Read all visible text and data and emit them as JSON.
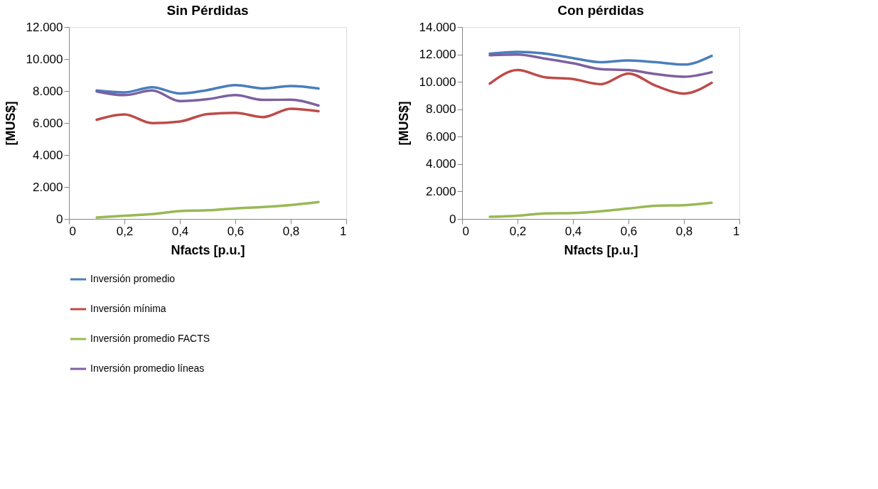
{
  "chart_data": [
    {
      "type": "line",
      "title": "Sin Pérdidas",
      "xlabel": "Nfacts [p.u.]",
      "ylabel": "[MUS$]",
      "x": [
        0.1,
        0.2,
        0.3,
        0.4,
        0.5,
        0.6,
        0.7,
        0.8,
        0.9
      ],
      "series": [
        {
          "name": "Inversión promedio",
          "color": "#4a7ebb",
          "values": [
            8030,
            7910,
            8230,
            7840,
            8060,
            8370,
            8160,
            8310,
            8160
          ]
        },
        {
          "name": "Inversión mínima",
          "color": "#be4b48",
          "values": [
            6200,
            6530,
            5990,
            6090,
            6560,
            6630,
            6370,
            6890,
            6730
          ]
        },
        {
          "name": "Inversión promedio FACTS",
          "color": "#98b954",
          "values": [
            90,
            200,
            300,
            490,
            540,
            660,
            740,
            870,
            1060
          ]
        },
        {
          "name": "Inversión promedio líneas",
          "color": "#7d60a0",
          "values": [
            7970,
            7740,
            8030,
            7370,
            7490,
            7740,
            7440,
            7460,
            7090
          ]
        }
      ],
      "xlim": [
        0,
        1
      ],
      "ylim": [
        0,
        12000
      ],
      "xticks": [
        0,
        {
          "value": 0.2,
          "label": "0,2"
        },
        {
          "value": 0.4,
          "label": "0,4"
        },
        {
          "value": 0.6,
          "label": "0,6"
        },
        {
          "value": 0.8,
          "label": "0,8"
        },
        1
      ],
      "yticks": [
        0,
        {
          "value": 2000,
          "label": "2.000"
        },
        {
          "value": 4000,
          "label": "4.000"
        },
        {
          "value": 6000,
          "label": "6.000"
        },
        {
          "value": 8000,
          "label": "8.000"
        },
        {
          "value": 10000,
          "label": "10.000"
        },
        {
          "value": 12000,
          "label": "12.000"
        }
      ],
      "legend": "bottom",
      "grid": false,
      "marker": "none",
      "line_style": "solid"
    },
    {
      "type": "line",
      "title": "Con pérdidas",
      "xlabel": "Nfacts [p.u.]",
      "ylabel": "[MUS$]",
      "x": [
        0.1,
        0.2,
        0.3,
        0.4,
        0.5,
        0.6,
        0.7,
        0.8,
        0.9
      ],
      "series": [
        {
          "name": "Inversión promedio",
          "color": "#4a7ebb",
          "values": [
            12060,
            12190,
            12060,
            11730,
            11430,
            11560,
            11430,
            11260,
            11890
          ]
        },
        {
          "name": "Inversión mínima",
          "color": "#be4b48",
          "values": [
            9870,
            10860,
            10330,
            10200,
            9830,
            10610,
            9700,
            9140,
            9930
          ]
        },
        {
          "name": "Inversión promedio FACTS",
          "color": "#98b954",
          "values": [
            150,
            230,
            400,
            430,
            560,
            760,
            960,
            1000,
            1180
          ]
        },
        {
          "name": "Inversión promedio líneas",
          "color": "#7d60a0",
          "values": [
            11940,
            11990,
            11690,
            11360,
            10930,
            10860,
            10560,
            10370,
            10700
          ]
        }
      ],
      "xlim": [
        0,
        1
      ],
      "ylim": [
        0,
        14000
      ],
      "xticks": [
        0,
        {
          "value": 0.2,
          "label": "0,2"
        },
        {
          "value": 0.4,
          "label": "0,4"
        },
        {
          "value": 0.6,
          "label": "0,6"
        },
        {
          "value": 0.8,
          "label": "0,8"
        },
        1
      ],
      "yticks": [
        0,
        {
          "value": 2000,
          "label": "2.000"
        },
        {
          "value": 4000,
          "label": "4.000"
        },
        {
          "value": 6000,
          "label": "6.000"
        },
        {
          "value": 8000,
          "label": "8.000"
        },
        {
          "value": 10000,
          "label": "10.000"
        },
        {
          "value": 12000,
          "label": "12.000"
        },
        {
          "value": 14000,
          "label": "14.000"
        }
      ],
      "legend": "bottom",
      "grid": false,
      "marker": "none",
      "line_style": "solid"
    }
  ]
}
